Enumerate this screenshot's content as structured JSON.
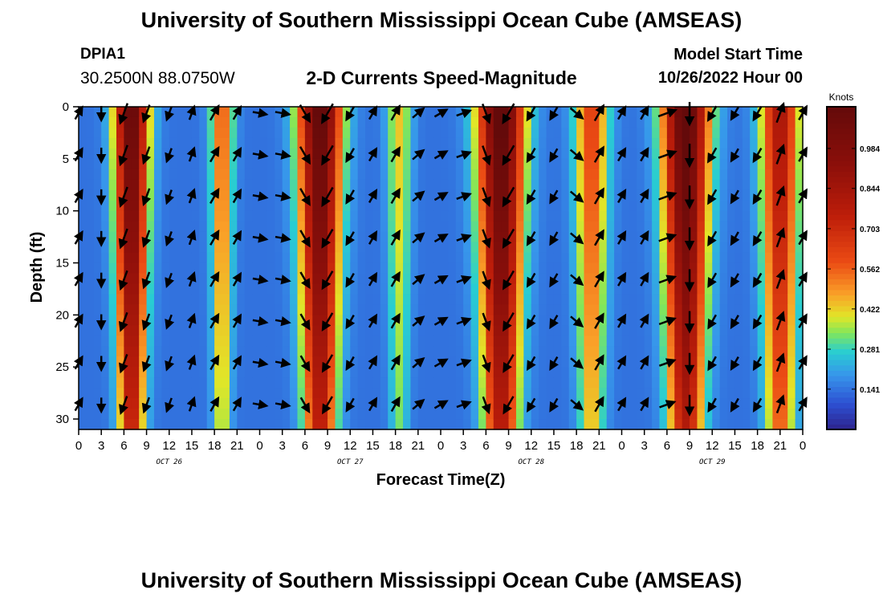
{
  "header": {
    "top_title": "University of Southern Mississippi Ocean Cube (AMSEAS)",
    "station_id": "DPIA1",
    "station_coords": "30.2500N  88.0750W",
    "subtitle": "2-D Currents Speed-Magnitude",
    "model_start_label": "Model Start Time",
    "model_start_value": "10/26/2022 Hour 00"
  },
  "footer": {
    "bottom_title": "University of Southern Mississippi Ocean Cube (AMSEAS)"
  },
  "chart_data": {
    "type": "heatmap",
    "title": "2-D Currents Speed-Magnitude",
    "xlabel": "Forecast Time(Z)",
    "ylabel": "Depth (ft)",
    "x_range_hours": [
      0,
      96
    ],
    "y_range_ft": [
      0,
      31
    ],
    "x_tick_labels": [
      "0",
      "3",
      "6",
      "9",
      "12",
      "15",
      "18",
      "21",
      "0",
      "3",
      "6",
      "9",
      "12",
      "15",
      "18",
      "21",
      "0",
      "3",
      "6",
      "9",
      "12",
      "15",
      "18",
      "21",
      "0",
      "3",
      "6",
      "9",
      "12",
      "15",
      "18",
      "21",
      "0"
    ],
    "y_ticks": [
      0,
      5,
      10,
      15,
      20,
      25,
      30
    ],
    "y_tick_labels": [
      "0",
      "5",
      "10",
      "15",
      "20",
      "25",
      "30"
    ],
    "day_labels": [
      {
        "label": "OCT 26",
        "hour": 12
      },
      {
        "label": "OCT 27",
        "hour": 36
      },
      {
        "label": "OCT 28",
        "hour": 60
      },
      {
        "label": "OCT 29",
        "hour": 84
      }
    ],
    "colorbar": {
      "title": "Knots",
      "range": [
        0.0,
        1.13
      ],
      "tick_values": [
        0.141,
        0.281,
        0.422,
        0.562,
        0.703,
        0.844,
        0.984
      ],
      "tick_labels": [
        "0.141",
        "0.281",
        "0.422",
        "0.562",
        "0.703",
        "0.844",
        "0.984"
      ]
    },
    "speed_peaks": [
      {
        "hour": 7,
        "width": 2.2,
        "amp": 1.0
      },
      {
        "hour": 19,
        "width": 1.5,
        "amp": 0.45
      },
      {
        "hour": 32,
        "width": 2.8,
        "amp": 1.02
      },
      {
        "hour": 42.5,
        "width": 1.6,
        "amp": 0.3
      },
      {
        "hour": 56,
        "width": 3.0,
        "amp": 1.05
      },
      {
        "hour": 68,
        "width": 2.2,
        "amp": 0.5
      },
      {
        "hour": 80.5,
        "width": 3.0,
        "amp": 1.05
      },
      {
        "hour": 93,
        "width": 2.5,
        "amp": 0.7
      }
    ],
    "vector_hours": [
      0,
      3,
      6,
      9,
      12,
      15,
      18,
      21,
      24,
      27,
      30,
      33,
      36,
      39,
      42,
      45,
      48,
      51,
      54,
      57,
      60,
      63,
      66,
      69,
      72,
      75,
      78,
      81,
      84,
      87,
      90,
      93,
      96
    ],
    "vector_depths_ft": [
      0,
      4,
      8,
      12,
      16,
      20,
      24,
      28
    ],
    "vector_units": "direction degrees (0 = up, clockwise)",
    "vector_direction_by_hour": [
      30,
      180,
      200,
      200,
      200,
      20,
      30,
      30,
      100,
      100,
      150,
      210,
      210,
      30,
      30,
      50,
      60,
      70,
      160,
      210,
      210,
      210,
      130,
      30,
      30,
      30,
      70,
      180,
      210,
      210,
      210,
      20,
      30
    ]
  }
}
